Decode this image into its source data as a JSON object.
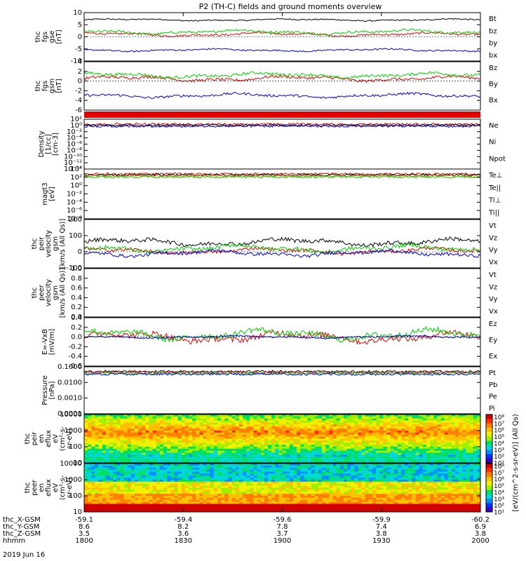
{
  "title": "P2 (TH-C) fields and ground moments overview",
  "colors": {
    "black": "#000000",
    "red": "#e00000",
    "green": "#00d000",
    "blue": "#0000e0",
    "axis": "#000000"
  },
  "chart_data": [
    {
      "type": "line",
      "ylabel": [
        "thc",
        "fgs",
        "gse",
        "[nT]"
      ],
      "yticks": [
        "10",
        "5",
        "0",
        "-5",
        "-10"
      ],
      "ylim": [
        -10,
        10
      ],
      "series": [
        {
          "name": "Bt",
          "color": "black",
          "base": 7.0,
          "noise": 0.5
        },
        {
          "name": "bz",
          "color": "red",
          "base": 1.0,
          "noise": 0.8
        },
        {
          "name": "by",
          "color": "green",
          "base": 2.0,
          "noise": 1.0
        },
        {
          "name": "bx",
          "color": "blue",
          "base": -5.5,
          "noise": 0.6
        }
      ],
      "legend": [
        "Bt",
        "bz",
        "by",
        "bx"
      ]
    },
    {
      "type": "line",
      "ylabel": [
        "thc",
        "fgs",
        "gsm",
        "[nT]"
      ],
      "yticks": [
        "4",
        "2",
        "0",
        "-2",
        "-4",
        "-6"
      ],
      "ylim": [
        -6,
        4
      ],
      "series": [
        {
          "name": "Bz",
          "color": "red",
          "base": 0.5,
          "noise": 0.6
        },
        {
          "name": "By",
          "color": "green",
          "base": 1.2,
          "noise": 0.6
        },
        {
          "name": "Bx",
          "color": "blue",
          "base": -3.0,
          "noise": 0.5
        }
      ],
      "legend": [
        "Bz",
        "By",
        "Bx"
      ]
    },
    {
      "type": "line",
      "ylabel": [
        "Density",
        "[1/cc]",
        "[cm-3]"
      ],
      "yticks": [
        "10²",
        "10⁰",
        "10⁻²",
        "10⁻⁴",
        "10⁻⁶",
        "10⁻⁸",
        "10⁻¹⁰",
        "10⁻¹²",
        "10⁻¹⁴"
      ],
      "series": [
        {
          "name": "Ne",
          "color": "red"
        },
        {
          "name": "Ni",
          "color": "black"
        },
        {
          "name": "Npot",
          "color": "blue"
        }
      ],
      "legend": [
        "Ne",
        "Ni",
        "Npot"
      ]
    },
    {
      "type": "line",
      "ylabel": [
        "magt3",
        "[eV]"
      ],
      "yticks": [
        "10⁴",
        "10²",
        "10⁰",
        "10⁻²",
        "10⁻⁴",
        "10⁻⁶",
        "10⁻⁸"
      ],
      "series": [
        {
          "name": "Te⊥",
          "color": "red"
        },
        {
          "name": "Te||",
          "color": "black"
        },
        {
          "name": "Ti⊥",
          "color": "orange"
        },
        {
          "name": "Ti||",
          "color": "green"
        }
      ],
      "legend": [
        "Te⊥",
        "Te||",
        "Ti⊥",
        "Ti||"
      ]
    },
    {
      "type": "line",
      "ylabel": [
        "thc",
        "peir",
        "velocity",
        "gsm",
        "[km/s (All Qs)]"
      ],
      "yticks": [
        "200",
        "100",
        "0",
        "-100"
      ],
      "ylim": [
        -100,
        200
      ],
      "series": [
        {
          "name": "Vt",
          "color": "black",
          "base": 60,
          "noise": 25
        },
        {
          "name": "Vz",
          "color": "red",
          "base": 5,
          "noise": 20
        },
        {
          "name": "Vy",
          "color": "green",
          "base": 20,
          "noise": 25
        },
        {
          "name": "Vx",
          "color": "blue",
          "base": -10,
          "noise": 20
        }
      ],
      "legend": [
        "Vt",
        "Vz",
        "Vy",
        "Vx"
      ]
    },
    {
      "type": "line",
      "ylabel": [
        "thc",
        "peer",
        "velocity",
        "gsm",
        "[km/s (All Qs)]"
      ],
      "yticks": [
        "1.0",
        "0.8",
        "0.6",
        "0.4",
        "0.2",
        "0.0"
      ],
      "ylim": [
        0,
        1
      ],
      "series": [
        {
          "name": "Vt",
          "color": "black"
        },
        {
          "name": "Vz",
          "color": "red"
        },
        {
          "name": "Vy",
          "color": "green"
        },
        {
          "name": "Vx",
          "color": "blue"
        }
      ],
      "legend": [
        "Vt",
        "Vz",
        "Vy",
        "Vx"
      ]
    },
    {
      "type": "line",
      "ylabel": [
        "E=-VxB",
        "[mV/m]"
      ],
      "yticks": [
        "0.4",
        "0.2",
        "0.0",
        "-0.2",
        "-0.4",
        "-0.6"
      ],
      "ylim": [
        -0.6,
        0.4
      ],
      "series": [
        {
          "name": "Ez",
          "color": "red",
          "base": 0.0,
          "noise": 0.12
        },
        {
          "name": "Ey",
          "color": "green",
          "base": 0.05,
          "noise": 0.12
        },
        {
          "name": "Ex",
          "color": "blue",
          "base": 0.0,
          "noise": 0.03
        }
      ],
      "legend": [
        "Ez",
        "Ey",
        "Ex"
      ]
    },
    {
      "type": "line",
      "ylabel": [
        "Pressure",
        "[nPa]"
      ],
      "yticks": [
        "0.1000",
        "0.0100",
        "0.0010",
        "0.0001"
      ],
      "series": [
        {
          "name": "Pt",
          "color": "black"
        },
        {
          "name": "Pb",
          "color": "red"
        },
        {
          "name": "Pe",
          "color": "green"
        },
        {
          "name": "Pi",
          "color": "blue"
        }
      ],
      "legend": [
        "Pt",
        "Pb",
        "Pe",
        "Pi"
      ]
    },
    {
      "type": "heatmap",
      "ylabel": [
        "thc",
        "peir",
        "en",
        "eflux",
        "eV",
        "(cm²-s-",
        "sr-eV)"
      ],
      "yticks": [
        "10000",
        "1000",
        "100",
        "10"
      ]
    },
    {
      "type": "heatmap",
      "ylabel": [
        "thc",
        "peer",
        "en",
        "eflux",
        "eV",
        "(cm²-s-",
        "sr-eV)"
      ],
      "yticks": [
        "10000",
        "1000",
        "100",
        "10"
      ]
    }
  ],
  "colorbar": {
    "label": "[eV/(cm^2-s-sr-eV)] (All Qs)",
    "ticks_top": [
      "10⁸",
      "10⁷",
      "10⁶",
      "10⁵",
      "10⁴",
      "10³",
      "10²",
      "10¹"
    ],
    "ticks_bottom": [
      "10⁸",
      "10⁷",
      "10⁶",
      "10⁵",
      "10⁴",
      "10³",
      "10²",
      "10¹"
    ]
  },
  "x_axis": {
    "rows": [
      {
        "name": "thc_X-GSM",
        "values": [
          "-59.1",
          "-59.4",
          "-59.6",
          "-59.9",
          "-60.2"
        ]
      },
      {
        "name": "thc_Y-GSM",
        "values": [
          "8.6",
          "8.2",
          "7.8",
          "7.4",
          "6.9"
        ]
      },
      {
        "name": "thc_Z-GSM",
        "values": [
          "3.5",
          "3.6",
          "3.7",
          "3.8",
          "3.8"
        ]
      },
      {
        "name": "hhmm",
        "values": [
          "1800",
          "1830",
          "1900",
          "1930",
          "2000"
        ]
      }
    ],
    "date": "2019 Jun 16"
  }
}
